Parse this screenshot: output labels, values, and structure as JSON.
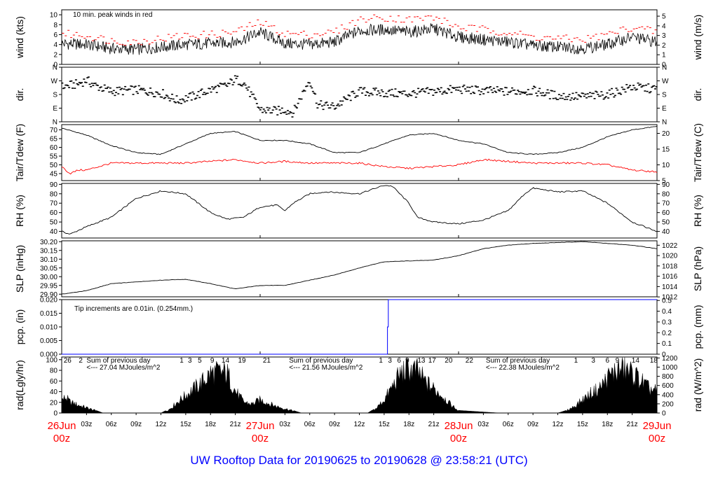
{
  "title": {
    "prefix": "UW Rooftop Data for",
    "start": "20190625",
    "sep": "to",
    "end": "20190628",
    "at": "@",
    "time": "23:58:21",
    "tz": "(UTC)"
  },
  "colors": {
    "main": "#000000",
    "red": "#ff0000",
    "blue": "#0000ff",
    "purple": "#a020f0"
  },
  "chart_data": {
    "type": "line",
    "time_range_hours": [
      0,
      72
    ],
    "time_axis": {
      "tick_labels": [
        {
          "h": 3,
          "label": "03z"
        },
        {
          "h": 6,
          "label": "06z"
        },
        {
          "h": 9,
          "label": "09z"
        },
        {
          "h": 12,
          "label": "12z"
        },
        {
          "h": 15,
          "label": "15z"
        },
        {
          "h": 18,
          "label": "18z"
        },
        {
          "h": 21,
          "label": "21z"
        },
        {
          "h": 27,
          "label": "03z"
        },
        {
          "h": 30,
          "label": "06z"
        },
        {
          "h": 33,
          "label": "09z"
        },
        {
          "h": 36,
          "label": "12z"
        },
        {
          "h": 39,
          "label": "15z"
        },
        {
          "h": 42,
          "label": "18z"
        },
        {
          "h": 45,
          "label": "21z"
        },
        {
          "h": 51,
          "label": "03z"
        },
        {
          "h": 54,
          "label": "06z"
        },
        {
          "h": 57,
          "label": "09z"
        },
        {
          "h": 60,
          "label": "12z"
        },
        {
          "h": 63,
          "label": "15z"
        },
        {
          "h": 66,
          "label": "18z"
        },
        {
          "h": 69,
          "label": "21z"
        }
      ],
      "day_labels": [
        {
          "h": 0,
          "date": "26Jun",
          "z": "00z"
        },
        {
          "h": 24,
          "date": "27Jun",
          "z": "00z"
        },
        {
          "h": 48,
          "date": "28Jun",
          "z": "00z"
        },
        {
          "h": 72,
          "date": "29Jun",
          "z": "00z"
        }
      ]
    },
    "panels": [
      {
        "id": "wind",
        "left_label": "wind (kts)",
        "right_label": "wind (m/s)",
        "left_ticks": [
          "0",
          "2",
          "4",
          "6",
          "8",
          "10"
        ],
        "left_range": [
          0,
          11
        ],
        "right_ticks": [
          "0",
          "1",
          "2",
          "3",
          "4",
          "5"
        ],
        "annotation": "10 min. peak winds in red",
        "series": [
          {
            "name": "wind speed",
            "hours": [
              0,
              3,
              6,
              9,
              12,
              15,
              18,
              21,
              24,
              27,
              30,
              33,
              36,
              39,
              42,
              45,
              48,
              51,
              54,
              57,
              60,
              63,
              66,
              69,
              72
            ],
            "values": [
              4.2,
              4.0,
              3.2,
              3.0,
              3.5,
              4.0,
              4.2,
              4.5,
              6.5,
              4.2,
              4.0,
              4.5,
              6.8,
              7.0,
              6.5,
              7.2,
              5.5,
              5.0,
              4.5,
              3.8,
              3.5,
              3.2,
              4.0,
              5.5,
              4.5
            ]
          },
          {
            "name": "10 min. peak winds",
            "hours": [
              0,
              3,
              6,
              9,
              12,
              15,
              18,
              21,
              24,
              27,
              30,
              33,
              36,
              39,
              42,
              45,
              48,
              51,
              54,
              57,
              60,
              63,
              66,
              69,
              72
            ],
            "values": [
              6.2,
              5.8,
              4.8,
              4.5,
              5.2,
              5.8,
              6.0,
              6.5,
              8.5,
              6.2,
              6.0,
              6.5,
              9.0,
              9.5,
              9.0,
              9.5,
              7.5,
              7.0,
              6.5,
              5.5,
              5.2,
              5.0,
              6.0,
              7.5,
              6.5
            ]
          }
        ]
      },
      {
        "id": "dir",
        "left_label": "dir.",
        "right_label": "dir.",
        "left_ticks": [
          "N",
          "W",
          "S",
          "E",
          "N"
        ],
        "left_range": [
          0,
          360
        ],
        "right_ticks": [
          "N",
          "W",
          "S",
          "E",
          "N"
        ],
        "series": [
          {
            "name": "direction (deg, N at top = 360)",
            "hours": [
              0,
              2,
              3,
              4,
              6,
              9,
              12,
              14,
              16,
              18,
              20,
              21,
              22,
              23,
              24,
              26,
              27,
              28,
              30,
              31,
              33,
              36,
              39,
              42,
              45,
              48,
              51,
              54,
              57,
              60,
              63,
              66,
              69,
              72
            ],
            "values": [
              230,
              250,
              275,
              240,
              200,
              210,
              190,
              140,
              170,
              210,
              240,
              280,
              260,
              170,
              80,
              70,
              80,
              60,
              280,
              110,
              100,
              200,
              190,
              185,
              200,
              215,
              205,
              200,
              205,
              170,
              165,
              180,
              230,
              215
            ]
          }
        ]
      },
      {
        "id": "temp",
        "left_label": "Tair/Tdew (F)",
        "right_label": "Tair/Tdew (C)",
        "left_ticks": [
          "45",
          "50",
          "55",
          "60",
          "65",
          "70"
        ],
        "left_range": [
          41,
          73
        ],
        "right_ticks": [
          "5",
          "10",
          "15",
          "20"
        ],
        "series": [
          {
            "name": "Tair",
            "hours": [
              0,
              3,
              6,
              9,
              12,
              15,
              18,
              21,
              24,
              27,
              30,
              33,
              36,
              39,
              42,
              45,
              48,
              51,
              54,
              57,
              60,
              63,
              66,
              69,
              72
            ],
            "values": [
              71,
              67,
              61,
              57,
              56,
              62,
              68,
              69,
              64,
              64,
              62,
              57,
              57,
              62,
              67,
              68,
              64,
              62,
              57,
              56,
              57,
              60,
              66,
              70,
              72
            ]
          },
          {
            "name": "Tdew",
            "hours": [
              0,
              1,
              2,
              3,
              6,
              9,
              12,
              15,
              18,
              21,
              24,
              27,
              30,
              33,
              36,
              39,
              42,
              45,
              48,
              51,
              54,
              57,
              60,
              63,
              66,
              69,
              72
            ],
            "values": [
              49,
              45,
              47,
              47,
              51,
              51,
              51,
              51,
              52,
              53,
              51,
              52,
              51,
              51,
              51,
              49,
              48,
              49,
              50,
              53,
              52,
              51,
              51,
              51,
              50,
              47,
              46
            ]
          }
        ]
      },
      {
        "id": "rh",
        "left_label": "RH (%)",
        "right_label": "RH (%)",
        "left_ticks": [
          "40",
          "50",
          "60",
          "70",
          "80",
          "90"
        ],
        "left_range": [
          33,
          91
        ],
        "right_ticks": [
          "40",
          "50",
          "60",
          "70",
          "80",
          "90"
        ],
        "series": [
          {
            "name": "RH",
            "hours": [
              0,
              1,
              3,
              6,
              9,
              12,
              15,
              18,
              20,
              22,
              24,
              26,
              27,
              28,
              30,
              32,
              36,
              39,
              40,
              42,
              43,
              45,
              48,
              51,
              54,
              56,
              57,
              60,
              63,
              66,
              69,
              72
            ],
            "values": [
              40,
              37,
              45,
              55,
              75,
              83,
              80,
              60,
              53,
              55,
              66,
              68,
              62,
              70,
              80,
              82,
              80,
              89,
              88,
              70,
              55,
              50,
              48,
              52,
              62,
              80,
              86,
              82,
              83,
              70,
              50,
              40
            ]
          }
        ]
      },
      {
        "id": "slp",
        "left_label": "SLP (inHg)",
        "right_label": "SLP (hPa)",
        "left_ticks": [
          "29.90",
          "29.95",
          "30.00",
          "30.05",
          "30.10",
          "30.15",
          "30.20"
        ],
        "left_range": [
          29.885,
          30.205
        ],
        "right_ticks": [
          "1012",
          "1014",
          "1016",
          "1018",
          "1020",
          "1022"
        ],
        "series": [
          {
            "name": "SLP",
            "hours": [
              0,
              3,
              6,
              9,
              12,
              15,
              18,
              21,
              24,
              27,
              30,
              33,
              36,
              39,
              42,
              45,
              48,
              51,
              54,
              57,
              60,
              63,
              66,
              69,
              72
            ],
            "values": [
              29.9,
              29.92,
              29.96,
              29.97,
              29.98,
              29.985,
              29.96,
              29.93,
              29.95,
              29.95,
              29.98,
              30.01,
              30.05,
              30.085,
              30.09,
              30.095,
              30.12,
              30.16,
              30.18,
              30.19,
              30.195,
              30.2,
              30.19,
              30.18,
              30.16
            ]
          }
        ]
      },
      {
        "id": "pcp",
        "left_label": "pcp. (in)",
        "right_label": "pcp. (mm)",
        "left_ticks": [
          "0.000",
          "0.005",
          "0.010",
          "0.015",
          "0.020"
        ],
        "left_range": [
          0,
          0.02
        ],
        "right_ticks": [
          "0",
          "0.1",
          "0.2",
          "0.3",
          "0.4",
          "0.5"
        ],
        "annotation": "Tip increments are 0.01in. (0.254mm.)",
        "series": [
          {
            "name": "precip accumulation",
            "hours": [
              0,
              39.4,
              39.4,
              39.5,
              39.5,
              72
            ],
            "values": [
              0,
              0,
              0.01,
              0.01,
              0.02,
              0.02
            ]
          }
        ]
      },
      {
        "id": "rad",
        "left_label": "rad(Lgly/hr)",
        "right_label": "rad (W/m^2)",
        "left_ticks": [
          "0",
          "20",
          "40",
          "60",
          "80",
          "100"
        ],
        "left_range": [
          0,
          105
        ],
        "right_ticks": [
          "0",
          "200",
          "400",
          "600",
          "800",
          "1000",
          "1200"
        ],
        "hour_markers": [
          {
            "h": 0.7,
            "label": "26"
          },
          {
            "h": 2.3,
            "label": "2"
          },
          {
            "h": 14.5,
            "label": "1"
          },
          {
            "h": 15.5,
            "label": "3"
          },
          {
            "h": 16.7,
            "label": "5"
          },
          {
            "h": 18.2,
            "label": "9"
          },
          {
            "h": 19.8,
            "label": "14"
          },
          {
            "h": 21.8,
            "label": "19"
          },
          {
            "h": 24.8,
            "label": "21"
          },
          {
            "h": 38.6,
            "label": "1"
          },
          {
            "h": 39.7,
            "label": "3"
          },
          {
            "h": 40.8,
            "label": "6"
          },
          {
            "h": 41.8,
            "label": "9"
          },
          {
            "h": 43.5,
            "label": "13"
          },
          {
            "h": 44.8,
            "label": "17"
          },
          {
            "h": 46.8,
            "label": "20"
          },
          {
            "h": 49.3,
            "label": "22"
          },
          {
            "h": 62.2,
            "label": "1"
          },
          {
            "h": 64.3,
            "label": "3"
          },
          {
            "h": 66.0,
            "label": "6"
          },
          {
            "h": 67.2,
            "label": "9"
          },
          {
            "h": 69.4,
            "label": "14"
          },
          {
            "h": 71.6,
            "label": "18"
          }
        ],
        "daily_totals": [
          {
            "h": 3.0,
            "line1": "Sum of previous day",
            "line2": "<--- 27.04 MJoules/m^2"
          },
          {
            "h": 27.5,
            "line1": "Sum of previous day",
            "line2": "<--- 21.56 MJoules/m^2"
          },
          {
            "h": 51.3,
            "line1": "Sum of previous day",
            "line2": "<--- 22.38 MJoules/m^2"
          }
        ],
        "series": [
          {
            "name": "radiation",
            "hours": [
              0,
              0.5,
              1,
              2,
              3,
              4,
              5,
              12,
              13,
              14,
              15,
              16,
              17,
              18,
              19,
              20,
              21,
              22,
              23,
              24,
              25,
              26,
              27,
              28,
              29,
              36,
              37,
              38,
              39,
              40,
              41,
              42,
              43,
              44,
              45,
              46,
              47,
              48,
              53,
              60,
              61,
              62,
              63,
              64,
              65,
              66,
              67,
              68,
              69,
              70,
              71,
              72
            ],
            "values": [
              30,
              35,
              25,
              18,
              12,
              6,
              0,
              0,
              8,
              25,
              40,
              55,
              70,
              90,
              92,
              90,
              50,
              25,
              20,
              30,
              22,
              15,
              10,
              5,
              0,
              0,
              0,
              10,
              30,
              60,
              90,
              100,
              95,
              70,
              55,
              40,
              20,
              5,
              0,
              0,
              5,
              15,
              30,
              45,
              55,
              80,
              95,
              100,
              90,
              75,
              55,
              50
            ]
          }
        ]
      }
    ]
  }
}
